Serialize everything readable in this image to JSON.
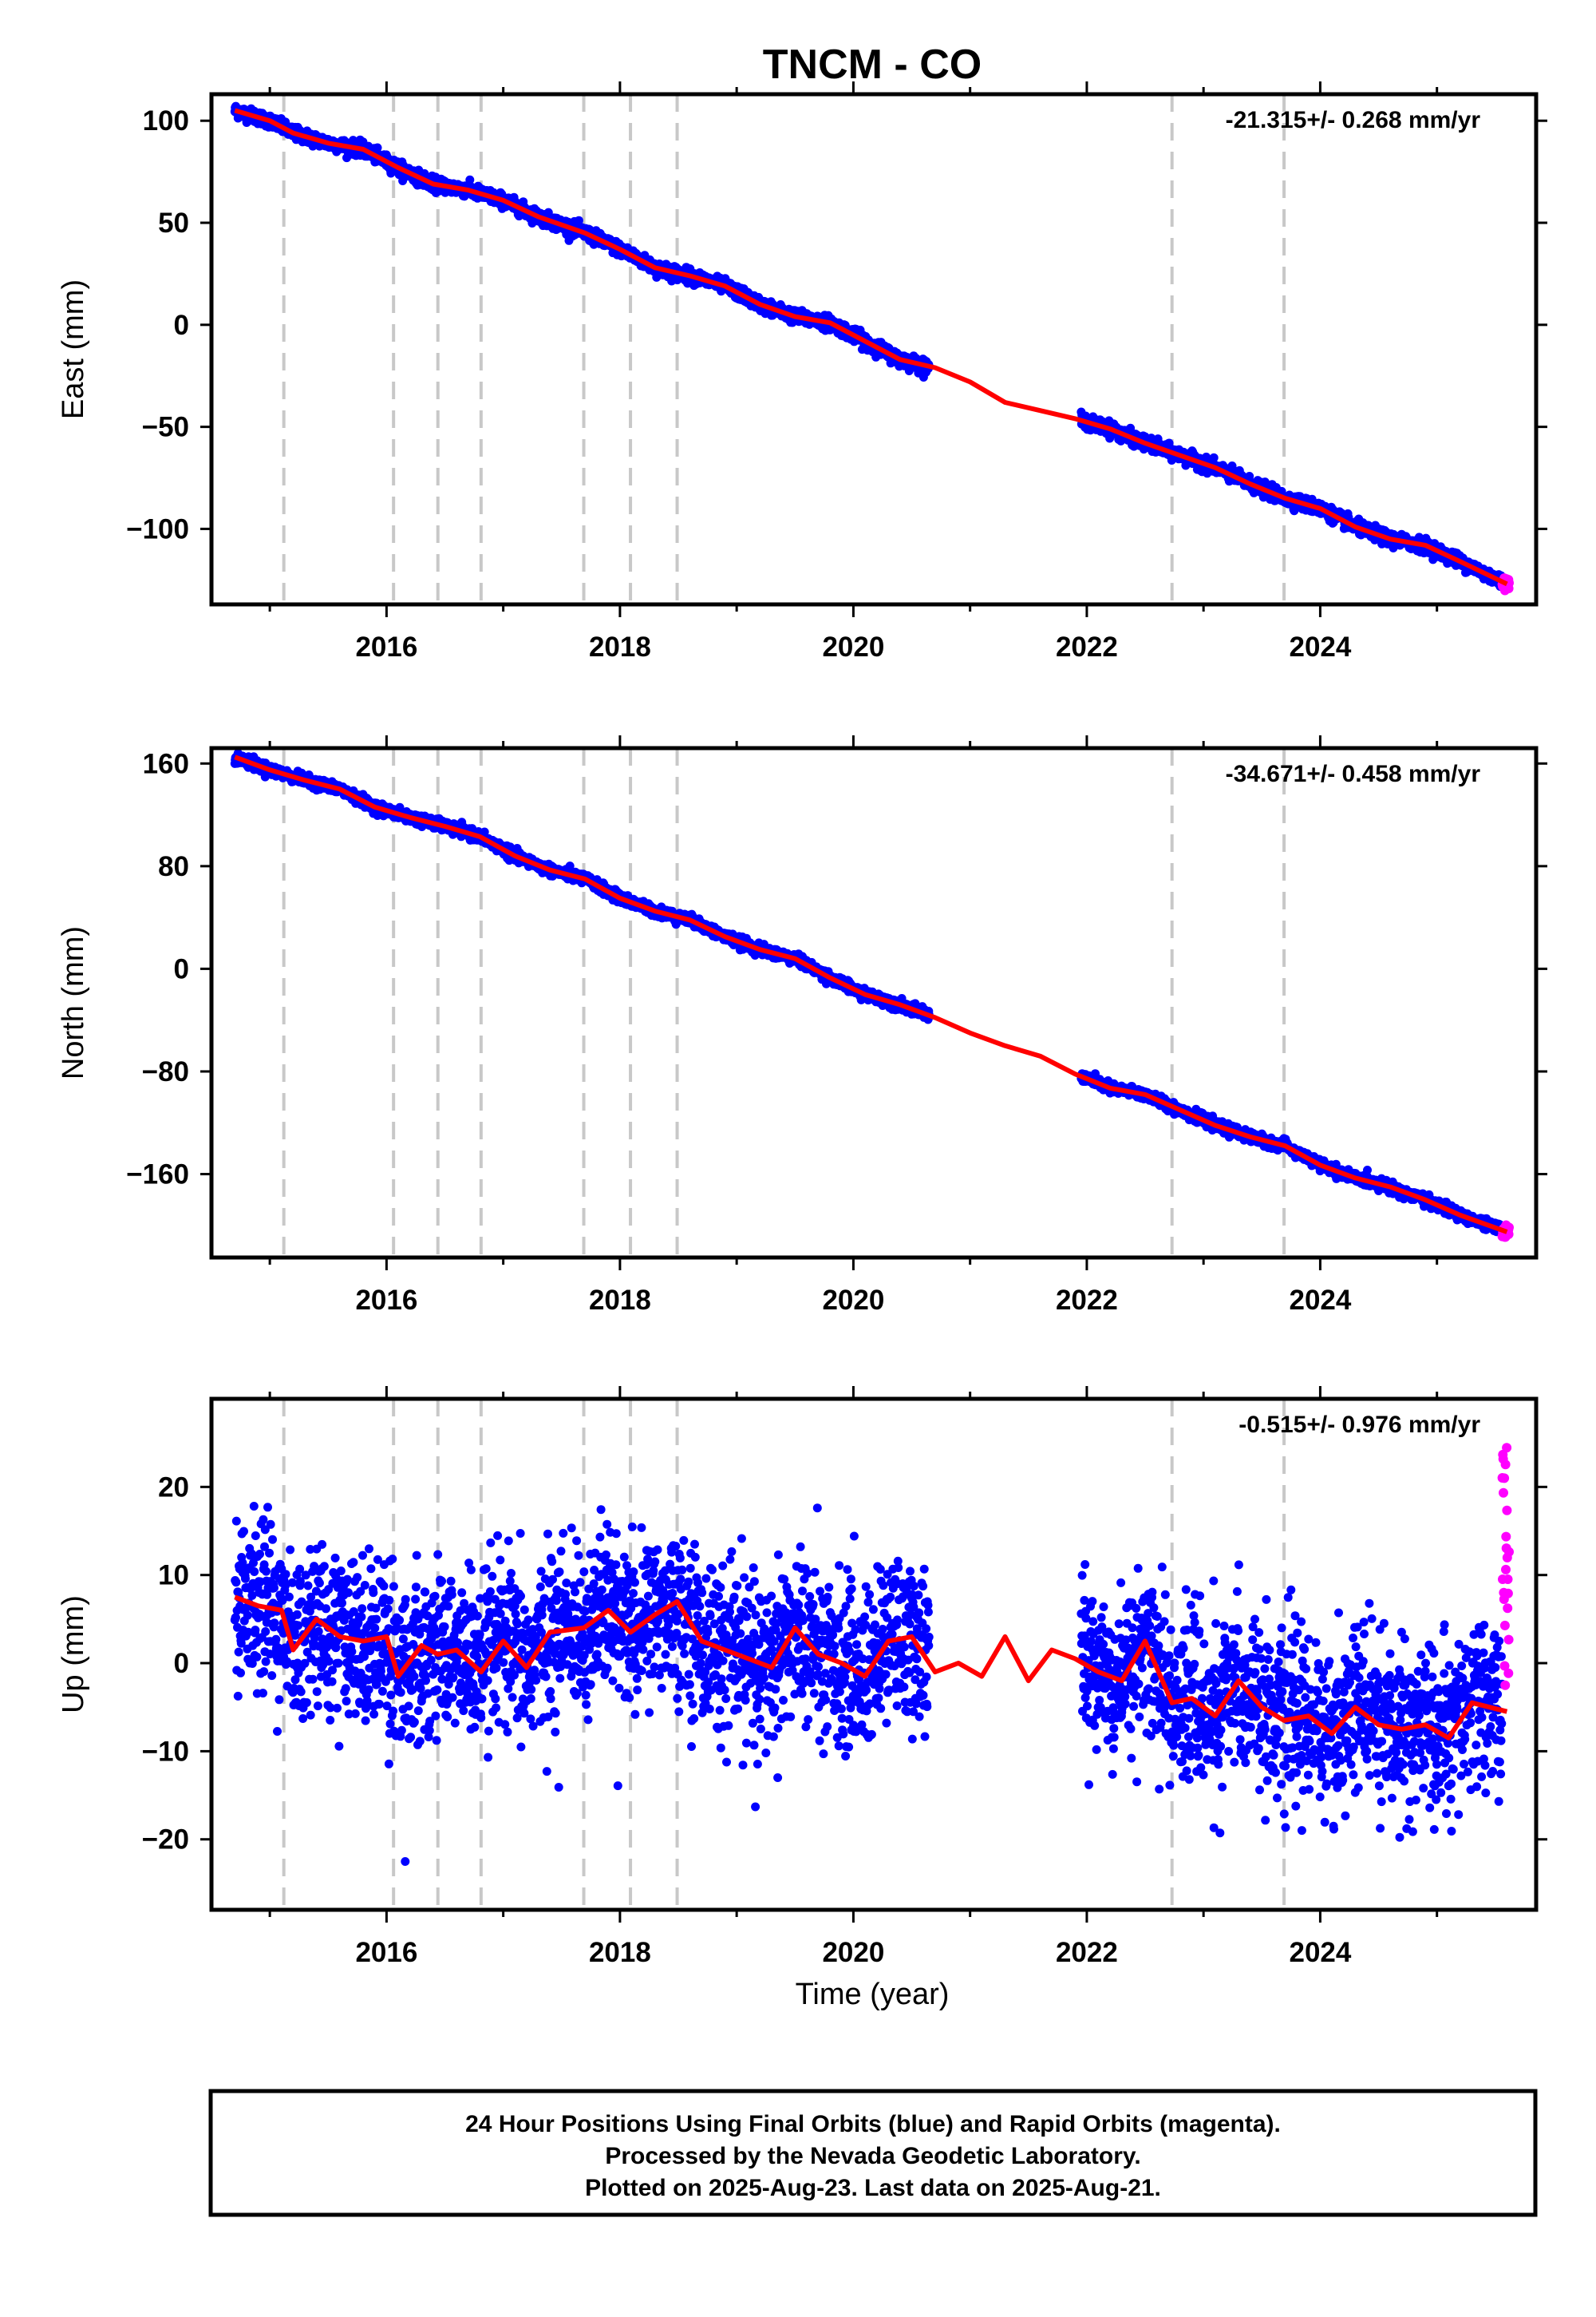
{
  "title": "TNCM - CO",
  "xlabel": "Time (year)",
  "footer": {
    "line1": "24 Hour Positions Using Final Orbits (blue) and Rapid Orbits (magenta).",
    "line2": "Processed by the Nevada Geodetic Laboratory.",
    "line3": "Plotted on 2025-Aug-23. Last data on 2025-Aug-21."
  },
  "colors": {
    "final_orbits": "#0000ff",
    "rapid_orbits": "#ff00ff",
    "model_fit": "#ff0000",
    "event_lines": "#c8c8c8"
  },
  "chart_data": [
    {
      "type": "scatter",
      "panel": "east",
      "ylabel": "East (mm)",
      "rate_label": "-21.315+/- 0.268 mm/yr",
      "xlim": [
        2014.5,
        2025.85
      ],
      "ylim": [
        -137,
        113
      ],
      "x_ticks": [
        2016,
        2018,
        2020,
        2022,
        2024
      ],
      "y_ticks": [
        -100,
        -50,
        0,
        50,
        100
      ],
      "event_lines": [
        2015.12,
        2016.06,
        2016.44,
        2016.81,
        2017.69,
        2018.09,
        2018.49,
        2022.73,
        2023.69
      ],
      "gaps": [
        [
          2020.65,
          2021.95
        ]
      ],
      "series": [
        {
          "role": "final",
          "rate": -21.3,
          "noise": 1.6,
          "x_range": [
            2014.7,
            2025.56
          ]
        },
        {
          "role": "rapid",
          "noise": 1.8,
          "x_range": [
            2025.56,
            2025.62
          ]
        }
      ],
      "model": {
        "x": [
          2014.7,
          2015.0,
          2015.2,
          2015.5,
          2015.8,
          2016.1,
          2016.4,
          2016.7,
          2017.0,
          2017.3,
          2017.7,
          2018.0,
          2018.3,
          2018.6,
          2018.9,
          2019.2,
          2019.5,
          2019.8,
          2020.1,
          2020.4,
          2020.7,
          2021.0,
          2021.3,
          2021.6,
          2021.9,
          2022.2,
          2022.5,
          2022.8,
          2023.1,
          2023.4,
          2023.7,
          2024.0,
          2024.3,
          2024.6,
          2024.9,
          2025.2,
          2025.6
        ],
        "y": [
          105,
          100,
          94,
          89,
          86,
          77,
          69,
          66,
          61,
          53,
          45,
          37,
          28,
          24,
          19,
          10,
          4,
          1,
          -8,
          -17,
          -21,
          -28,
          -38,
          -42,
          -46,
          -51,
          -58,
          -64,
          -70,
          -78,
          -85,
          -90,
          -99,
          -105,
          -108,
          -116,
          -127
        ]
      }
    },
    {
      "type": "scatter",
      "panel": "north",
      "ylabel": "North (mm)",
      "rate_label": "-34.671+/- 0.458 mm/yr",
      "xlim": [
        2014.5,
        2025.85
      ],
      "ylim": [
        -225,
        172
      ],
      "x_ticks": [
        2016,
        2018,
        2020,
        2022,
        2024
      ],
      "y_ticks": [
        -160,
        -80,
        0,
        80,
        160
      ],
      "event_lines": [
        2015.12,
        2016.06,
        2016.44,
        2016.81,
        2017.69,
        2018.09,
        2018.49,
        2022.73,
        2023.69
      ],
      "gaps": [
        [
          2020.65,
          2021.95
        ]
      ],
      "series": [
        {
          "role": "final",
          "rate": -34.7,
          "noise": 2.0,
          "x_range": [
            2014.7,
            2025.56
          ]
        },
        {
          "role": "rapid",
          "noise": 2.5,
          "x_range": [
            2025.56,
            2025.62
          ]
        }
      ],
      "model": {
        "x": [
          2014.7,
          2015.0,
          2015.3,
          2015.6,
          2015.9,
          2016.2,
          2016.5,
          2016.8,
          2017.1,
          2017.4,
          2017.7,
          2018.0,
          2018.3,
          2018.6,
          2018.9,
          2019.2,
          2019.5,
          2019.8,
          2020.1,
          2020.4,
          2020.7,
          2021.0,
          2021.3,
          2021.6,
          2021.9,
          2022.2,
          2022.5,
          2022.8,
          2023.1,
          2023.4,
          2023.7,
          2024.0,
          2024.3,
          2024.6,
          2024.9,
          2025.2,
          2025.6
        ],
        "y": [
          165,
          155,
          147,
          140,
          126,
          118,
          111,
          103,
          88,
          77,
          70,
          55,
          45,
          38,
          25,
          15,
          8,
          -7,
          -20,
          -28,
          -38,
          -50,
          -60,
          -68,
          -82,
          -93,
          -98,
          -110,
          -122,
          -131,
          -138,
          -153,
          -163,
          -170,
          -180,
          -192,
          -205
        ]
      }
    },
    {
      "type": "scatter",
      "panel": "up",
      "ylabel": "Up (mm)",
      "rate_label": "-0.515+/- 0.976 mm/yr",
      "xlabel": "Time (year)",
      "xlim": [
        2014.5,
        2025.85
      ],
      "ylim": [
        -28,
        30
      ],
      "x_ticks": [
        2016,
        2018,
        2020,
        2022,
        2024
      ],
      "y_ticks": [
        -20,
        -10,
        0,
        10,
        20
      ],
      "event_lines": [
        2015.12,
        2016.06,
        2016.44,
        2016.81,
        2017.69,
        2018.09,
        2018.49,
        2022.73,
        2023.69
      ],
      "gaps": [
        [
          2020.65,
          2021.95
        ]
      ],
      "series": [
        {
          "role": "final",
          "noise": 4.6,
          "x_range": [
            2014.7,
            2025.56
          ]
        },
        {
          "role": "rapid",
          "noise": 8.0,
          "x_range": [
            2025.56,
            2025.62
          ]
        }
      ],
      "model": {
        "x": [
          2014.7,
          2014.9,
          2015.1,
          2015.2,
          2015.4,
          2015.6,
          2015.8,
          2016.0,
          2016.1,
          2016.3,
          2016.44,
          2016.6,
          2016.81,
          2017.0,
          2017.2,
          2017.4,
          2017.69,
          2017.9,
          2018.09,
          2018.3,
          2018.49,
          2018.7,
          2018.9,
          2019.1,
          2019.3,
          2019.5,
          2019.7,
          2019.9,
          2020.1,
          2020.3,
          2020.5,
          2020.7,
          2020.9,
          2021.1,
          2021.3,
          2021.5,
          2021.7,
          2021.9,
          2022.1,
          2022.3,
          2022.5,
          2022.73,
          2022.9,
          2023.1,
          2023.3,
          2023.5,
          2023.69,
          2023.9,
          2024.1,
          2024.3,
          2024.5,
          2024.7,
          2024.9,
          2025.1,
          2025.3,
          2025.6
        ],
        "y": [
          7.5,
          6.5,
          6.0,
          1.5,
          5.0,
          3.0,
          2.5,
          3.0,
          -1.5,
          2.0,
          1.0,
          1.5,
          -1.0,
          2.5,
          -0.5,
          3.5,
          4.0,
          6.0,
          3.5,
          5.5,
          7.0,
          2.5,
          1.5,
          0.5,
          -0.5,
          4.0,
          1.0,
          0.0,
          -1.5,
          2.5,
          3.0,
          -1.0,
          0.0,
          -1.5,
          3.0,
          -2.0,
          1.5,
          0.5,
          -1.0,
          -2.0,
          2.5,
          -4.5,
          -4.0,
          -6.0,
          -2.0,
          -5.0,
          -6.5,
          -6.0,
          -8.0,
          -5.0,
          -7.0,
          -7.5,
          -7.0,
          -8.5,
          -4.5,
          -5.5
        ]
      }
    }
  ]
}
